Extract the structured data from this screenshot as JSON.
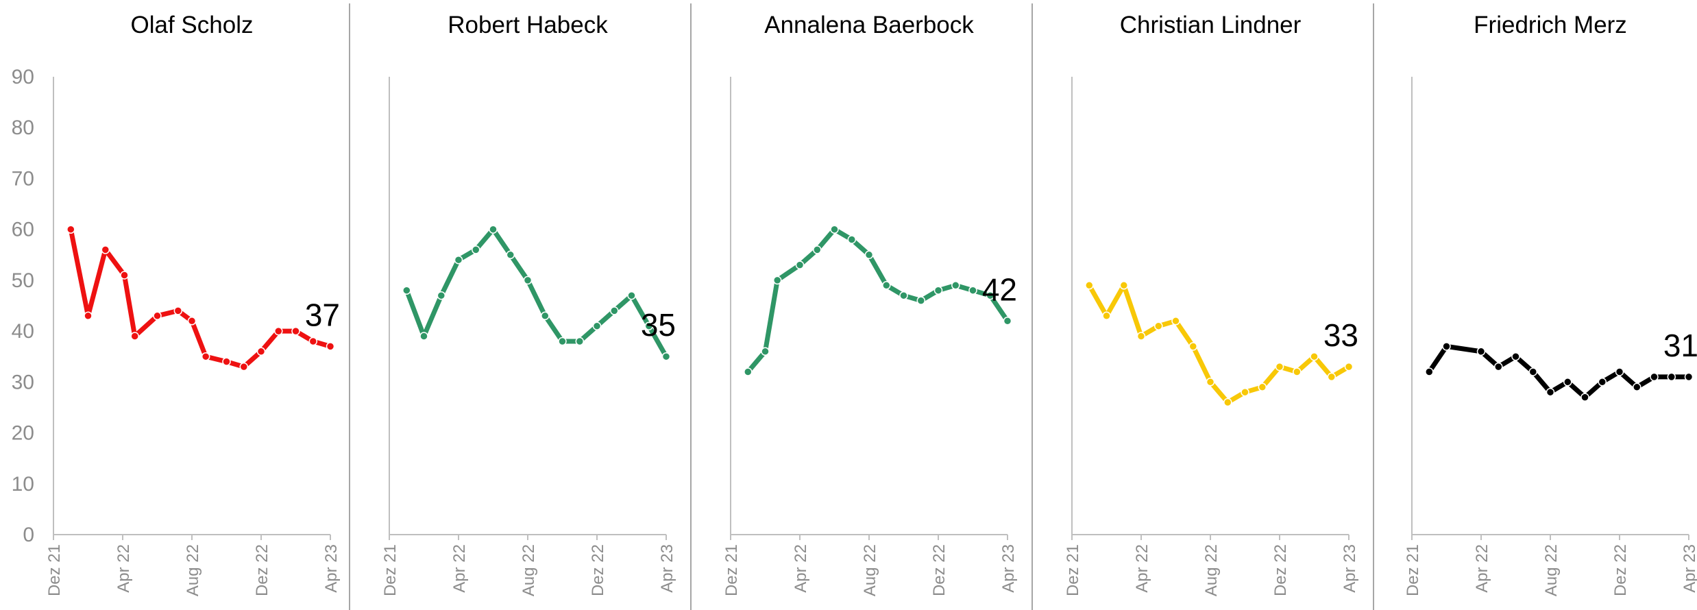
{
  "chart_data": {
    "type": "line",
    "ylim": [
      0,
      90
    ],
    "yticks": [
      "0",
      "10",
      "20",
      "30",
      "40",
      "50",
      "60",
      "70",
      "80",
      "90"
    ],
    "xticks": [
      "Dez 21",
      "Apr 22",
      "Aug 22",
      "Dez 22",
      "Apr 23"
    ],
    "grid": false,
    "panels": [
      {
        "title": "Olaf Scholz",
        "color": "#ee1111",
        "end_label": "37",
        "points": [
          [
            1.0,
            60
          ],
          [
            2.0,
            43
          ],
          [
            3.0,
            56
          ],
          [
            4.1,
            51
          ],
          [
            4.7,
            39
          ],
          [
            6.0,
            43
          ],
          [
            7.2,
            44
          ],
          [
            8.0,
            42
          ],
          [
            8.8,
            35
          ],
          [
            10.0,
            34
          ],
          [
            11.0,
            33
          ],
          [
            12.0,
            36
          ],
          [
            13.0,
            40
          ],
          [
            14.0,
            40
          ],
          [
            15.0,
            38
          ],
          [
            16.0,
            37
          ]
        ]
      },
      {
        "title": "Robert Habeck",
        "color": "#2f9666",
        "end_label": "35",
        "points": [
          [
            1.0,
            48
          ],
          [
            2.0,
            39
          ],
          [
            3.0,
            47
          ],
          [
            4.0,
            54
          ],
          [
            5.0,
            56
          ],
          [
            6.0,
            60
          ],
          [
            7.0,
            55
          ],
          [
            8.0,
            50
          ],
          [
            9.0,
            43
          ],
          [
            10.0,
            38
          ],
          [
            11.0,
            38
          ],
          [
            12.0,
            41
          ],
          [
            13.0,
            44
          ],
          [
            14.0,
            47
          ],
          [
            15.0,
            41
          ],
          [
            16.0,
            35
          ]
        ]
      },
      {
        "title": "Annalena Baerbock",
        "color": "#2f9666",
        "end_label": "42",
        "points": [
          [
            1.0,
            32
          ],
          [
            2.0,
            36
          ],
          [
            2.7,
            50
          ],
          [
            4.0,
            53
          ],
          [
            5.0,
            56
          ],
          [
            6.0,
            60
          ],
          [
            7.0,
            58
          ],
          [
            8.0,
            55
          ],
          [
            9.0,
            49
          ],
          [
            10.0,
            47
          ],
          [
            11.0,
            46
          ],
          [
            12.0,
            48
          ],
          [
            13.0,
            49
          ],
          [
            14.0,
            48
          ],
          [
            15.0,
            47
          ],
          [
            16.0,
            42
          ]
        ]
      },
      {
        "title": "Christian Lindner",
        "color": "#f8c807",
        "end_label": "33",
        "points": [
          [
            1.0,
            49
          ],
          [
            2.0,
            43
          ],
          [
            3.0,
            49
          ],
          [
            4.0,
            39
          ],
          [
            5.0,
            41
          ],
          [
            6.0,
            42
          ],
          [
            7.0,
            37
          ],
          [
            8.0,
            30
          ],
          [
            9.0,
            26
          ],
          [
            10.0,
            28
          ],
          [
            11.0,
            29
          ],
          [
            12.0,
            33
          ],
          [
            13.0,
            32
          ],
          [
            14.0,
            35
          ],
          [
            15.0,
            31
          ],
          [
            16.0,
            33
          ]
        ]
      },
      {
        "title": "Friedrich Merz",
        "color": "#000000",
        "end_label": "31",
        "points": [
          [
            1.0,
            32
          ],
          [
            2.0,
            37
          ],
          [
            4.0,
            36
          ],
          [
            5.0,
            33
          ],
          [
            6.0,
            35
          ],
          [
            7.0,
            32
          ],
          [
            8.0,
            28
          ],
          [
            9.0,
            30
          ],
          [
            10.0,
            27
          ],
          [
            11.0,
            30
          ],
          [
            12.0,
            32
          ],
          [
            13.0,
            29
          ],
          [
            14.0,
            31
          ],
          [
            15.0,
            31
          ],
          [
            16.0,
            31
          ]
        ]
      }
    ]
  }
}
